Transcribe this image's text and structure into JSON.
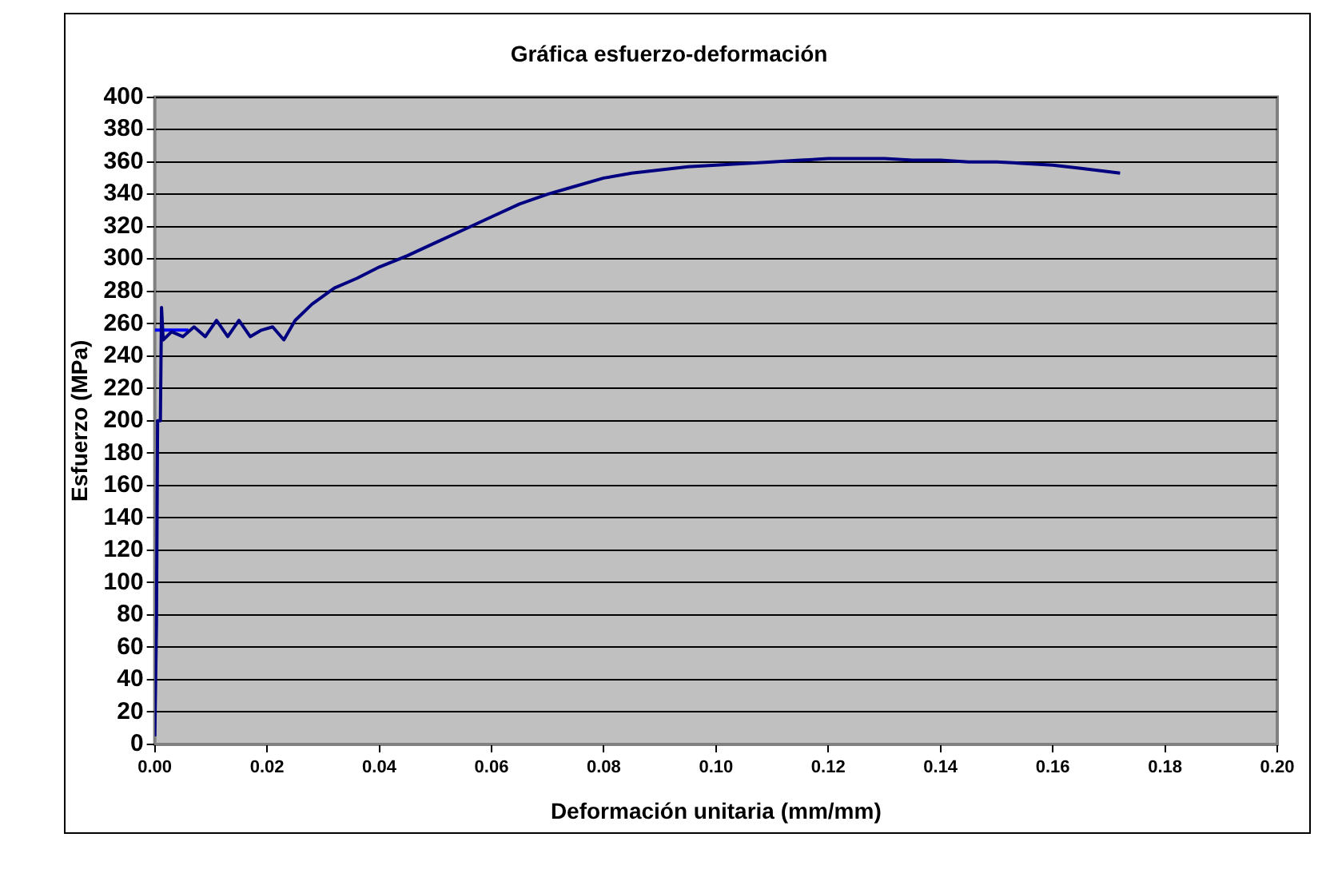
{
  "chart_data": {
    "type": "line",
    "title": "Gráfica esfuerzo-deformación",
    "xlabel": "Deformación unitaria (mm/mm)",
    "ylabel": "Esfuerzo (MPa)",
    "xlim": [
      0,
      0.2
    ],
    "xticks": [
      {
        "value": 0,
        "label": "0.00"
      },
      {
        "value": 0.02,
        "label": "0.02"
      },
      {
        "value": 0.04,
        "label": "0.04"
      },
      {
        "value": 0.06,
        "label": "0.06"
      },
      {
        "value": 0.08,
        "label": "0.08"
      },
      {
        "value": 0.1,
        "label": "0.10"
      },
      {
        "value": 0.12,
        "label": "0.12"
      },
      {
        "value": 0.14,
        "label": "0.14"
      },
      {
        "value": 0.16,
        "label": "0.16"
      },
      {
        "value": 0.18,
        "label": "0.18"
      },
      {
        "value": 0.2,
        "label": "0.20"
      }
    ],
    "ylim": [
      0,
      400
    ],
    "yticks": [
      0,
      20,
      40,
      60,
      80,
      100,
      120,
      140,
      160,
      180,
      200,
      220,
      240,
      260,
      280,
      300,
      320,
      340,
      360,
      380,
      400
    ],
    "grid": "y",
    "legend": false,
    "marker": "none",
    "line_style": "solid",
    "series": [
      {
        "color": "#000080",
        "x": [
          0,
          0.0003,
          0.0005,
          0.001,
          0.0012,
          0.0015,
          0.003,
          0.005,
          0.007,
          0.009,
          0.011,
          0.013,
          0.015,
          0.017,
          0.019,
          0.021,
          0.023,
          0.025,
          0.028,
          0.032,
          0.036,
          0.04,
          0.045,
          0.05,
          0.055,
          0.06,
          0.065,
          0.07,
          0.075,
          0.08,
          0.085,
          0.09,
          0.095,
          0.1,
          0.105,
          0.11,
          0.115,
          0.12,
          0.125,
          0.13,
          0.135,
          0.14,
          0.145,
          0.15,
          0.155,
          0.16,
          0.165,
          0.172
        ],
        "values": [
          5,
          75,
          200,
          200,
          270,
          250,
          255,
          252,
          258,
          252,
          262,
          252,
          262,
          252,
          256,
          258,
          250,
          262,
          272,
          282,
          288,
          295,
          302,
          310,
          318,
          326,
          334,
          340,
          345,
          350,
          353,
          355,
          357,
          358,
          359,
          360,
          361,
          362,
          362,
          362,
          361,
          361,
          360,
          360,
          359,
          358,
          356,
          353
        ]
      },
      {
        "color": "#0000ff",
        "x": [
          0,
          0.006
        ],
        "values": [
          256,
          256
        ]
      }
    ]
  }
}
